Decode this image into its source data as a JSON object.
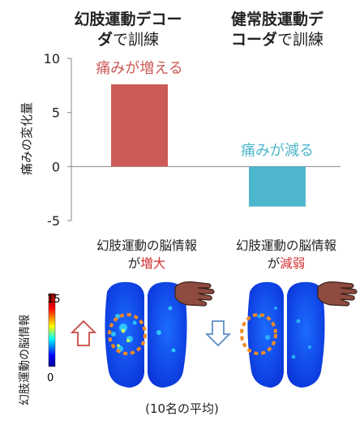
{
  "headers": {
    "left_bold": "幻肢運動デコー",
    "left_bold2": "ダ",
    "left_light": "で訓練",
    "right_bold": "健常肢運動デ",
    "right_bold2": "コーダ",
    "right_light": "で訓練"
  },
  "chart_data": {
    "type": "bar",
    "categories": [
      "幻肢運動デコーダで訓練",
      "健常肢運動デコーダで訓練"
    ],
    "values": [
      7.6,
      -3.7
    ],
    "ylabel": "痛みの変化量",
    "ylim": [
      -5,
      10
    ],
    "yticks": [
      "10",
      "5",
      "0",
      "-5"
    ],
    "bar_colors": [
      "#cc5a55",
      "#4db6cc"
    ],
    "annotations": [
      {
        "text": "痛みが増える",
        "color": "#cc5a55"
      },
      {
        "text": "痛みが減る",
        "color": "#4db6cc"
      }
    ]
  },
  "brains": {
    "left_caption_line1": "幻肢運動の脳情報",
    "left_caption_pre": "が",
    "left_caption_em": "増大",
    "right_caption_line1": "幻肢運動の脳情報",
    "right_caption_pre": "が",
    "right_caption_em": "減弱",
    "colorbar_label": "幻肢運動の脳情報",
    "colorbar_max": "15",
    "colorbar_min": "0",
    "highlight_color": "#f08a24",
    "emphasis_color": "#d32f2f",
    "arrow_up_color": "#c94a40",
    "arrow_down_color": "#5b8fc7",
    "hand_color": "#8f4b40"
  },
  "footer": "(10名の平均)"
}
